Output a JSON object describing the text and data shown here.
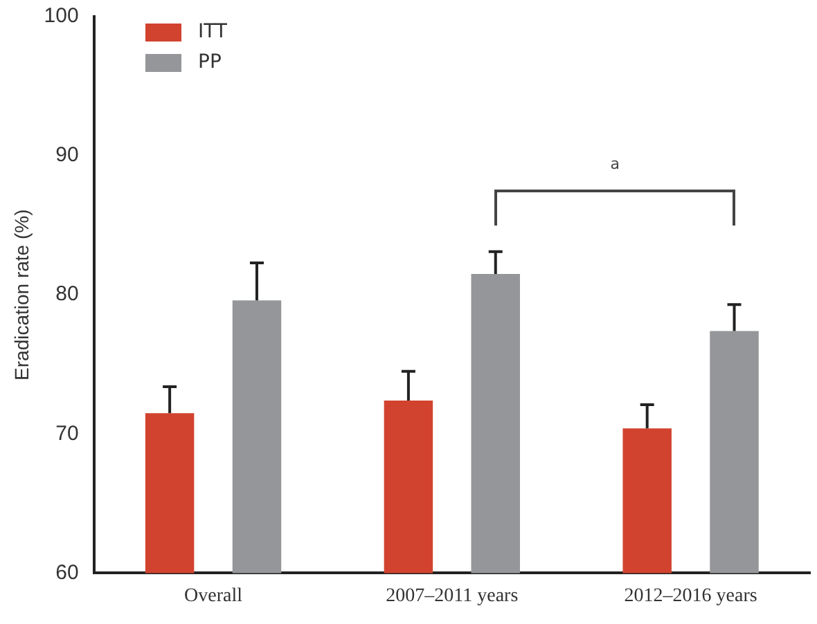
{
  "chart_data": {
    "type": "bar",
    "ylabel": "Eradication rate (%)",
    "categories": [
      "Overall",
      "2007–2011 years",
      "2012–2016 years"
    ],
    "series": [
      {
        "name": "ITT",
        "color": "#d1432f",
        "values": [
          71.5,
          72.4,
          70.4
        ],
        "errors": [
          [
            71.5,
            73.4
          ],
          [
            72.4,
            74.5
          ],
          [
            70.4,
            72.1
          ]
        ]
      },
      {
        "name": "PP",
        "color": "#959699",
        "values": [
          79.6,
          81.5,
          77.4
        ],
        "errors": [
          [
            79.6,
            82.3
          ],
          [
            81.5,
            83.1
          ],
          [
            77.4,
            79.3
          ]
        ]
      }
    ],
    "ylim": [
      60,
      100
    ],
    "yticks": [
      60,
      70,
      80,
      90,
      100
    ],
    "grid": false,
    "legend": "top left",
    "annotations": [
      "a"
    ]
  }
}
